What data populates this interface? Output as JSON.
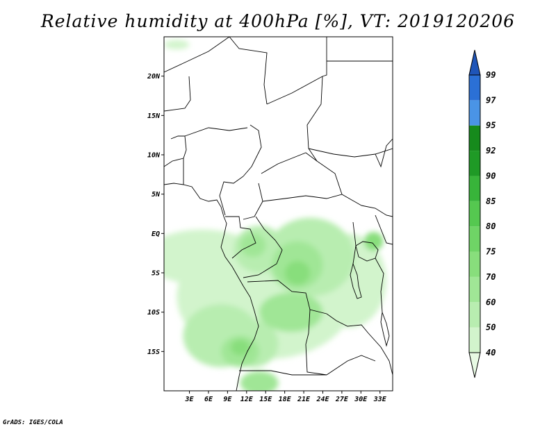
{
  "title": "Relative humidity at 400hPa [%], VT: 2019120206",
  "credit": "GrADS: IGES/COLA",
  "map": {
    "lon_range": [
      -1,
      35
    ],
    "lat_range": [
      -20,
      25
    ],
    "lat_ticks": [
      {
        "value": 20,
        "label": "20N"
      },
      {
        "value": 15,
        "label": "15N"
      },
      {
        "value": 10,
        "label": "10N"
      },
      {
        "value": 5,
        "label": "5N"
      },
      {
        "value": 0,
        "label": "EQ"
      },
      {
        "value": -5,
        "label": "5S"
      },
      {
        "value": -10,
        "label": "10S"
      },
      {
        "value": -15,
        "label": "15S"
      }
    ],
    "lon_ticks": [
      {
        "value": 3,
        "label": "3E"
      },
      {
        "value": 6,
        "label": "6E"
      },
      {
        "value": 9,
        "label": "9E"
      },
      {
        "value": 12,
        "label": "12E"
      },
      {
        "value": 15,
        "label": "15E"
      },
      {
        "value": 18,
        "label": "18E"
      },
      {
        "value": 21,
        "label": "21E"
      },
      {
        "value": 24,
        "label": "24E"
      },
      {
        "value": 27,
        "label": "27E"
      },
      {
        "value": 30,
        "label": "30E"
      },
      {
        "value": 33,
        "label": "33E"
      }
    ]
  },
  "colorbar": {
    "labels": [
      "40",
      "50",
      "60",
      "70",
      "75",
      "80",
      "85",
      "90",
      "92",
      "95",
      "97",
      "99"
    ],
    "colors": [
      "#e8fae4",
      "#d2f4cc",
      "#b8edb0",
      "#a0e696",
      "#88de7c",
      "#6fd466",
      "#55c850",
      "#38b43a",
      "#1f9a26",
      "#168a1c",
      "#4a94e6",
      "#2b70d6",
      "#1f55b8"
    ]
  },
  "humidity_regions": [
    {
      "level": 1,
      "lon": 5,
      "lat": -3,
      "rx": 9,
      "ry": 3.5
    },
    {
      "level": 1,
      "lon": 15,
      "lat": -8,
      "rx": 14,
      "ry": 8
    },
    {
      "level": 1,
      "lon": 28,
      "lat": -6,
      "rx": 6,
      "ry": 6
    },
    {
      "level": 2,
      "lon": 8,
      "lat": -13,
      "rx": 6,
      "ry": 4
    },
    {
      "level": 2,
      "lon": 14,
      "lat": -2,
      "rx": 4,
      "ry": 3
    },
    {
      "level": 2,
      "lon": 22,
      "lat": -3,
      "rx": 7,
      "ry": 5
    },
    {
      "level": 2,
      "lon": 13,
      "lat": -14,
      "rx": 4,
      "ry": 3
    },
    {
      "level": 3,
      "lon": 13,
      "lat": -1.5,
      "rx": 2,
      "ry": 1.5
    },
    {
      "level": 3,
      "lon": 20,
      "lat": -4,
      "rx": 4,
      "ry": 3
    },
    {
      "level": 3,
      "lon": 19,
      "lat": -10,
      "rx": 5,
      "ry": 2.5
    },
    {
      "level": 3,
      "lon": 11,
      "lat": -15,
      "rx": 3,
      "ry": 2
    },
    {
      "level": 3,
      "lon": 14,
      "lat": -19,
      "rx": 3,
      "ry": 1.5
    },
    {
      "level": 4,
      "lon": 20,
      "lat": -5,
      "rx": 2,
      "ry": 1.5
    },
    {
      "level": 4,
      "lon": 11,
      "lat": -14.5,
      "rx": 1.5,
      "ry": 1
    },
    {
      "level": 4,
      "lon": 32,
      "lat": -1,
      "rx": 1.5,
      "ry": 1.2
    },
    {
      "level": 1,
      "lon": 1,
      "lat": 24,
      "rx": 2,
      "ry": 0.6
    }
  ]
}
